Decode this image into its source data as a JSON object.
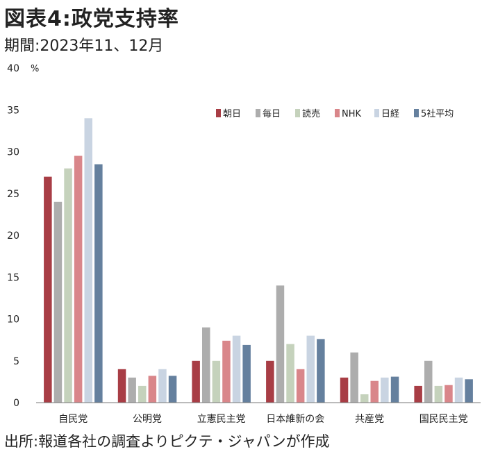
{
  "header": {
    "title": "図表4:政党支持率",
    "period": "期間:2023年11、12月"
  },
  "footer": {
    "source": "出所:報道各社の調査よりピクテ・ジャパンが作成"
  },
  "chart_data": {
    "type": "bar",
    "unit_label": "%",
    "ylim": [
      0,
      40
    ],
    "y_ticks": [
      "0",
      "5",
      "10",
      "15",
      "20",
      "25",
      "30",
      "35",
      "40"
    ],
    "legend_position": "top-right",
    "grid": false,
    "categories": [
      "自民党",
      "公明党",
      "立憲民主党",
      "日本維新の会",
      "共産党",
      "国民民主党"
    ],
    "series": [
      {
        "name": "朝日",
        "color": "#a83d45",
        "values": [
          27,
          4,
          5,
          5,
          3,
          2
        ]
      },
      {
        "name": "毎日",
        "color": "#adadad",
        "values": [
          24,
          3,
          9,
          14,
          6,
          5
        ]
      },
      {
        "name": "読売",
        "color": "#c5d2bc",
        "values": [
          28,
          2,
          5,
          7,
          1,
          2
        ]
      },
      {
        "name": "NHK",
        "color": "#d9868a",
        "values": [
          29.5,
          3.2,
          7.4,
          4,
          2.6,
          2.1
        ]
      },
      {
        "name": "日経",
        "color": "#c9d4e2",
        "values": [
          34,
          4,
          8,
          8,
          3,
          3
        ]
      },
      {
        "name": "5社平均",
        "color": "#65809e",
        "values": [
          28.5,
          3.2,
          6.9,
          7.6,
          3.1,
          2.8
        ]
      }
    ]
  }
}
